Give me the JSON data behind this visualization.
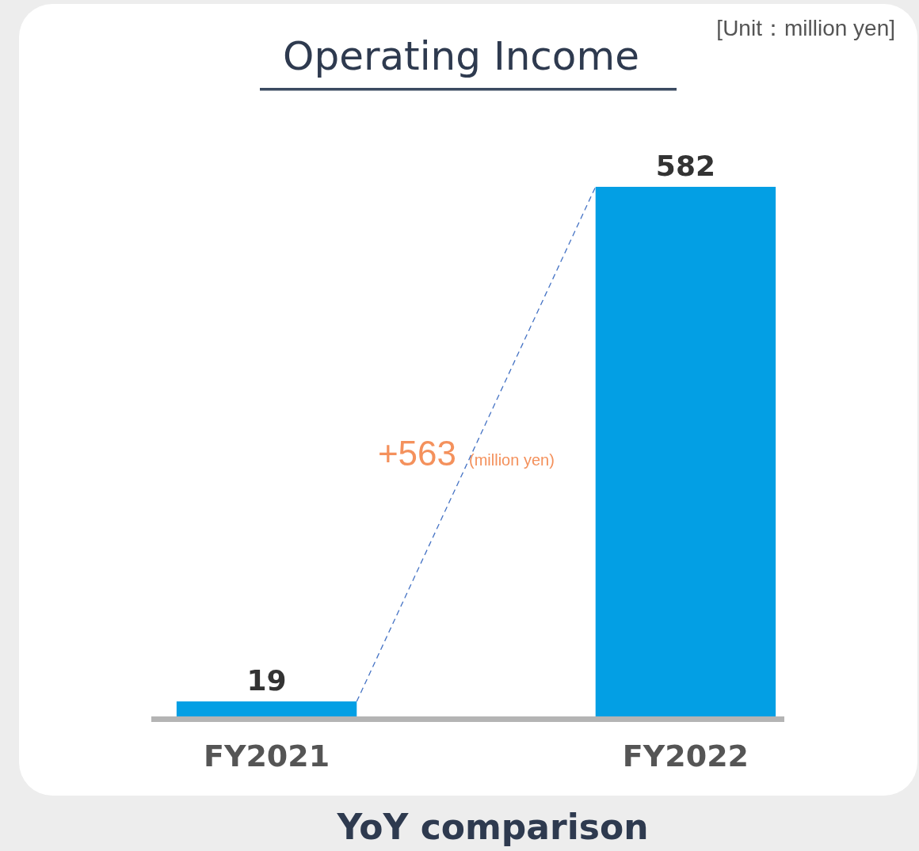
{
  "chart_data": {
    "type": "bar",
    "title": "Operating Income",
    "categories": [
      "FY2021",
      "FY2022"
    ],
    "values": [
      19,
      582
    ],
    "color": "#039fe4",
    "data_labels": true,
    "annotations": [
      "[Unit：million yen]",
      "+563",
      "(million yen)",
      "YoY comparison"
    ]
  }
}
